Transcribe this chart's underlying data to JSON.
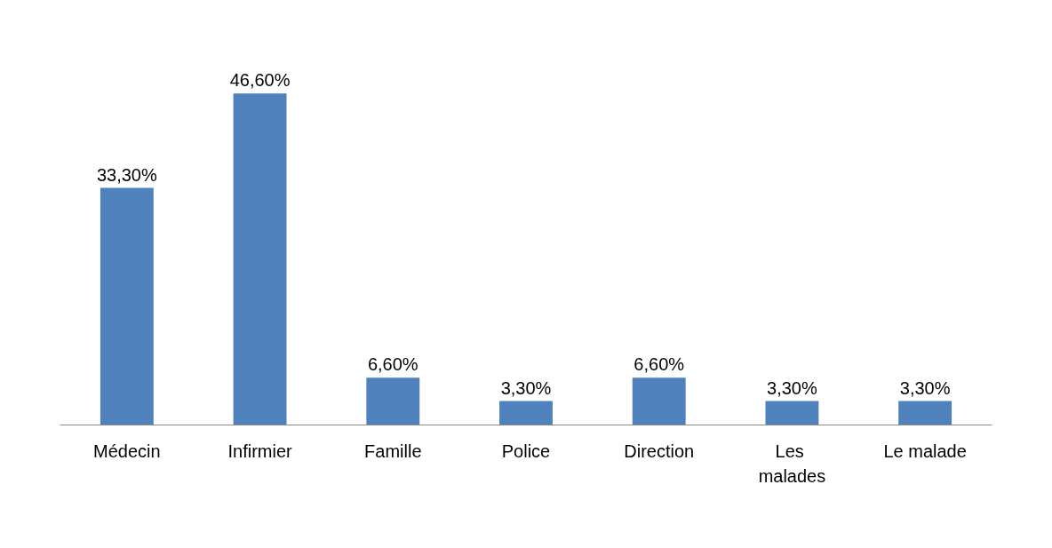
{
  "chart_data": {
    "type": "bar",
    "categories": [
      "Médecin",
      "Infirmier",
      "Famille",
      "Police",
      "Direction",
      "Les malades",
      "Le malade"
    ],
    "values": [
      33.3,
      46.6,
      6.6,
      3.3,
      6.6,
      3.3,
      3.3
    ],
    "value_labels": [
      "33,30%",
      "46,60%",
      "6,60%",
      "3,30%",
      "6,60%",
      "3,30%",
      "3,30%"
    ],
    "color": "#4f81bd"
  }
}
